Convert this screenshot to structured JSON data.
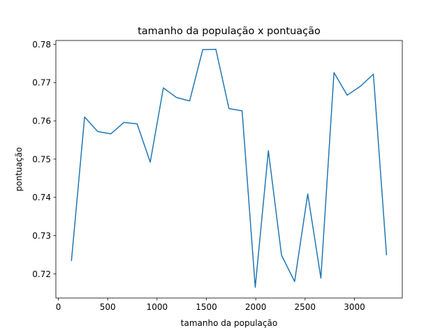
{
  "chart_data": {
    "type": "line",
    "title": "tamanho da população x pontuação",
    "xlabel": "tamanho da população",
    "ylabel": "pontuação",
    "xlim": [
      -25,
      3485
    ],
    "ylim": [
      0.7137,
      0.781
    ],
    "xticks": [
      0,
      500,
      1000,
      1500,
      2000,
      2500,
      3000
    ],
    "xtick_labels": [
      "0",
      "500",
      "1000",
      "1500",
      "2000",
      "2500",
      "3000"
    ],
    "yticks": [
      0.72,
      0.73,
      0.74,
      0.75,
      0.76,
      0.77,
      0.78
    ],
    "ytick_labels": [
      "0.72",
      "0.73",
      "0.74",
      "0.75",
      "0.76",
      "0.77",
      "0.78"
    ],
    "grid": false,
    "legend": "none",
    "series": [
      {
        "color": "#1f77b4",
        "x": [
          133,
          266,
          399,
          532,
          665,
          798,
          931,
          1064,
          1197,
          1330,
          1463,
          1596,
          1729,
          1862,
          1995,
          2128,
          2261,
          2394,
          2527,
          2660,
          2793,
          2926,
          3059,
          3192,
          3325
        ],
        "y": [
          0.7235,
          0.761,
          0.7572,
          0.7566,
          0.7596,
          0.7592,
          0.7492,
          0.7686,
          0.7661,
          0.7652,
          0.7786,
          0.7787,
          0.7632,
          0.7626,
          0.7165,
          0.7522,
          0.7249,
          0.718,
          0.7409,
          0.7189,
          0.7726,
          0.7667,
          0.769,
          0.7722,
          0.725
        ]
      }
    ]
  }
}
